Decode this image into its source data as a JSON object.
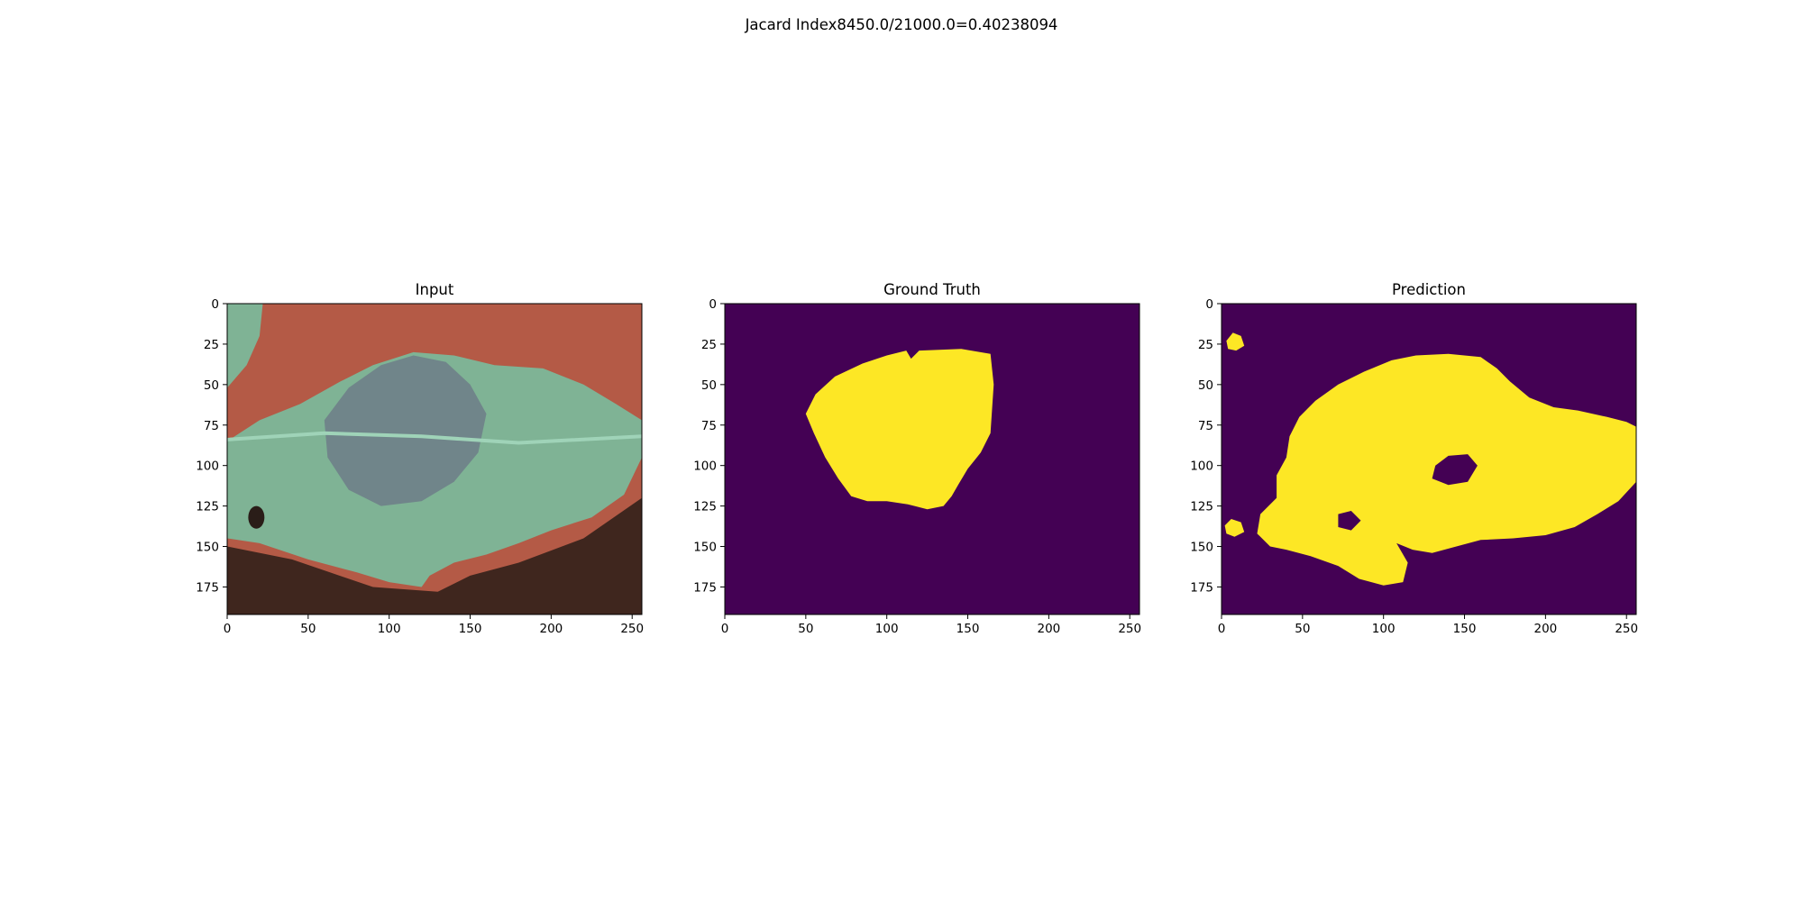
{
  "figure": {
    "suptitle": "Jacard Index8450.0/21000.0=0.40238094"
  },
  "chart_data": [
    {
      "type": "heatmap",
      "title": "Input",
      "content": "rgb-image",
      "image_size": [
        256,
        192
      ],
      "xlim": [
        0,
        256
      ],
      "ylim": [
        192,
        0
      ],
      "xticks": [
        0,
        50,
        100,
        150,
        200,
        250
      ],
      "yticks": [
        0,
        25,
        50,
        75,
        100,
        125,
        150,
        175
      ],
      "colors": {
        "background": "#b45a46",
        "leaf": "#7fb395",
        "lesion": "#6f7f88",
        "shadow": "#2a1d18",
        "midrib": "#9fd3b8"
      }
    },
    {
      "type": "heatmap",
      "title": "Ground Truth",
      "content": "binary-mask",
      "image_size": [
        256,
        192
      ],
      "xlim": [
        0,
        256
      ],
      "ylim": [
        192,
        0
      ],
      "xticks": [
        0,
        50,
        100,
        150,
        200,
        250
      ],
      "yticks": [
        0,
        25,
        50,
        75,
        100,
        125,
        150,
        175
      ],
      "colors": {
        "off": "#440154",
        "on": "#fde725"
      },
      "mask_regions": [
        {
          "value": 1,
          "polygon": [
            [
              50,
              68
            ],
            [
              56,
              56
            ],
            [
              68,
              45
            ],
            [
              85,
              37
            ],
            [
              100,
              32
            ],
            [
              112,
              29
            ],
            [
              115,
              34
            ],
            [
              120,
              29
            ],
            [
              146,
              28
            ],
            [
              164,
              31
            ],
            [
              166,
              50
            ],
            [
              165,
              65
            ],
            [
              164,
              80
            ],
            [
              158,
              92
            ],
            [
              150,
              102
            ],
            [
              144,
              112
            ],
            [
              140,
              119
            ],
            [
              135,
              125
            ],
            [
              125,
              127
            ],
            [
              113,
              124
            ],
            [
              100,
              122
            ],
            [
              88,
              122
            ],
            [
              78,
              119
            ],
            [
              70,
              108
            ],
            [
              62,
              95
            ],
            [
              55,
              80
            ]
          ]
        }
      ]
    },
    {
      "type": "heatmap",
      "title": "Prediction",
      "content": "binary-mask",
      "image_size": [
        256,
        192
      ],
      "xlim": [
        0,
        256
      ],
      "ylim": [
        192,
        0
      ],
      "xticks": [
        0,
        50,
        100,
        150,
        200,
        250
      ],
      "yticks": [
        0,
        25,
        50,
        75,
        100,
        125,
        150,
        175
      ],
      "colors": {
        "off": "#440154",
        "on": "#fde725"
      },
      "mask_regions": [
        {
          "value": 1,
          "polygon": [
            [
              42,
              82
            ],
            [
              48,
              70
            ],
            [
              58,
              60
            ],
            [
              72,
              50
            ],
            [
              88,
              42
            ],
            [
              105,
              35
            ],
            [
              120,
              32
            ],
            [
              140,
              31
            ],
            [
              160,
              33
            ],
            [
              170,
              40
            ],
            [
              178,
              48
            ],
            [
              190,
              58
            ],
            [
              205,
              64
            ],
            [
              220,
              66
            ],
            [
              238,
              70
            ],
            [
              250,
              73
            ],
            [
              256,
              76
            ],
            [
              256,
              110
            ],
            [
              245,
              122
            ],
            [
              232,
              130
            ],
            [
              218,
              138
            ],
            [
              200,
              143
            ],
            [
              180,
              145
            ],
            [
              160,
              146
            ],
            [
              145,
              150
            ],
            [
              130,
              154
            ],
            [
              118,
              152
            ],
            [
              108,
              148
            ],
            [
              115,
              160
            ],
            [
              112,
              172
            ],
            [
              100,
              174
            ],
            [
              85,
              170
            ],
            [
              72,
              162
            ],
            [
              55,
              156
            ],
            [
              40,
              152
            ],
            [
              30,
              150
            ],
            [
              22,
              142
            ],
            [
              24,
              130
            ],
            [
              34,
              120
            ],
            [
              34,
              106
            ],
            [
              40,
              95
            ]
          ]
        },
        {
          "value": 0,
          "polygon": [
            [
              132,
              100
            ],
            [
              140,
              94
            ],
            [
              152,
              93
            ],
            [
              158,
              100
            ],
            [
              152,
              110
            ],
            [
              140,
              112
            ],
            [
              130,
              108
            ]
          ]
        },
        {
          "value": 0,
          "polygon": [
            [
              72,
              130
            ],
            [
              80,
              128
            ],
            [
              86,
              134
            ],
            [
              80,
              140
            ],
            [
              72,
              138
            ]
          ]
        },
        {
          "value": 1,
          "polygon": [
            [
              3,
              23
            ],
            [
              7,
              18
            ],
            [
              12,
              20
            ],
            [
              14,
              26
            ],
            [
              9,
              29
            ],
            [
              4,
              28
            ]
          ]
        },
        {
          "value": 1,
          "polygon": [
            [
              2,
              137
            ],
            [
              6,
              133
            ],
            [
              12,
              135
            ],
            [
              14,
              141
            ],
            [
              8,
              144
            ],
            [
              3,
              142
            ]
          ]
        }
      ]
    }
  ]
}
